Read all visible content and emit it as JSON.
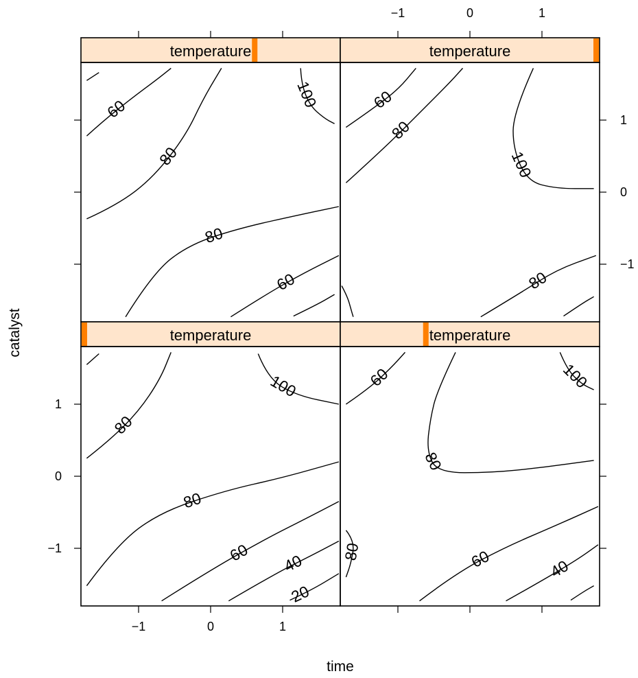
{
  "chart_data": {
    "type": "contour",
    "layout": "2x2 trellis panels",
    "xlabel": "time",
    "ylabel": "catalyst",
    "xlim": [
      -1.8,
      1.8
    ],
    "ylim": [
      -1.8,
      1.8
    ],
    "x_ticks": [
      "−1",
      "0",
      "1"
    ],
    "y_ticks": [
      "1",
      "0",
      "−1"
    ],
    "x_tick_values": [
      -1,
      0,
      1
    ],
    "y_tick_values": [
      1,
      0,
      -1
    ],
    "strip_color": "#ffe5cc",
    "strip_marker_color": "#ff7f00",
    "panels": [
      {
        "strip_label": "temperature",
        "temperature_marker_fraction": 0.67,
        "contours": [
          {
            "level": "",
            "points": [
              [
                -1.72,
                1.55
              ],
              [
                -1.55,
                1.66
              ]
            ]
          },
          {
            "level": "60",
            "points": [
              [
                -1.72,
                0.78
              ],
              [
                -1.5,
                0.98
              ],
              [
                -1.1,
                1.3
              ],
              [
                -0.75,
                1.56
              ],
              [
                -0.55,
                1.72
              ]
            ]
          },
          {
            "level": "80",
            "points": [
              [
                -1.72,
                -0.37
              ],
              [
                -1.3,
                -0.18
              ],
              [
                -0.8,
                0.2
              ],
              [
                -0.35,
                0.78
              ],
              [
                -0.1,
                1.3
              ],
              [
                0.15,
                1.72
              ]
            ]
          },
          {
            "level": "100",
            "points": [
              [
                1.25,
                1.72
              ],
              [
                1.26,
                1.5
              ],
              [
                1.38,
                1.2
              ],
              [
                1.57,
                1.03
              ],
              [
                1.72,
                0.95
              ]
            ]
          },
          {
            "level": "80",
            "points": [
              [
                -1.18,
                -1.73
              ],
              [
                -0.8,
                -1.12
              ],
              [
                -0.3,
                -0.73
              ],
              [
                0.4,
                -0.5
              ],
              [
                1.3,
                -0.3
              ],
              [
                1.78,
                -0.2
              ]
            ]
          },
          {
            "level": "60",
            "points": [
              [
                0.28,
                -1.73
              ],
              [
                0.8,
                -1.4
              ],
              [
                1.3,
                -1.12
              ],
              [
                1.78,
                -0.88
              ]
            ]
          },
          {
            "level": "",
            "points": [
              [
                1.15,
                -1.72
              ],
              [
                1.5,
                -1.55
              ],
              [
                1.72,
                -1.42
              ]
            ]
          }
        ]
      },
      {
        "strip_label": "temperature",
        "temperature_marker_fraction": 1.0,
        "contours": [
          {
            "level": "60",
            "points": [
              [
                -1.72,
                0.9
              ],
              [
                -1.4,
                1.12
              ],
              [
                -1.0,
                1.42
              ],
              [
                -0.75,
                1.72
              ]
            ]
          },
          {
            "level": "80",
            "points": [
              [
                -1.72,
                0.13
              ],
              [
                -1.2,
                0.6
              ],
              [
                -0.7,
                1.1
              ],
              [
                -0.3,
                1.5
              ],
              [
                -0.1,
                1.72
              ]
            ]
          },
          {
            "level": "100",
            "points": [
              [
                0.88,
                1.72
              ],
              [
                0.6,
                1.1
              ],
              [
                0.6,
                0.6
              ],
              [
                0.8,
                0.15
              ],
              [
                1.2,
                0.05
              ],
              [
                1.72,
                0.05
              ]
            ]
          },
          {
            "level": "80",
            "points": [
              [
                0.15,
                -1.73
              ],
              [
                0.7,
                -1.4
              ],
              [
                1.2,
                -1.08
              ],
              [
                1.75,
                -0.88
              ]
            ]
          },
          {
            "level": "",
            "points": [
              [
                1.3,
                -1.72
              ],
              [
                1.55,
                -1.55
              ],
              [
                1.72,
                -1.45
              ]
            ]
          },
          {
            "level": "",
            "points": [
              [
                -1.78,
                -1.3
              ],
              [
                -1.7,
                -1.45
              ],
              [
                -1.65,
                -1.63
              ],
              [
                -1.62,
                -1.73
              ]
            ]
          }
        ]
      },
      {
        "strip_label": "temperature",
        "temperature_marker_fraction": 0.0,
        "contours": [
          {
            "level": "",
            "points": [
              [
                -1.72,
                1.55
              ],
              [
                -1.55,
                1.7
              ]
            ]
          },
          {
            "level": "80",
            "points": [
              [
                -1.72,
                0.25
              ],
              [
                -1.4,
                0.5
              ],
              [
                -1.0,
                0.9
              ],
              [
                -0.7,
                1.35
              ],
              [
                -0.55,
                1.72
              ]
            ]
          },
          {
            "level": "100",
            "points": [
              [
                0.66,
                1.7
              ],
              [
                0.8,
                1.35
              ],
              [
                1.2,
                1.12
              ],
              [
                1.78,
                1.0
              ]
            ]
          },
          {
            "level": "80",
            "points": [
              [
                -1.72,
                -1.52
              ],
              [
                -1.3,
                -0.95
              ],
              [
                -0.7,
                -0.5
              ],
              [
                0.2,
                -0.2
              ],
              [
                1.0,
                -0.02
              ],
              [
                1.78,
                0.2
              ]
            ]
          },
          {
            "level": "60",
            "points": [
              [
                -0.68,
                -1.73
              ],
              [
                0.0,
                -1.3
              ],
              [
                0.8,
                -0.85
              ],
              [
                1.3,
                -0.6
              ],
              [
                1.78,
                -0.35
              ]
            ]
          },
          {
            "level": "40",
            "points": [
              [
                0.25,
                -1.73
              ],
              [
                0.9,
                -1.35
              ],
              [
                1.4,
                -1.1
              ],
              [
                1.78,
                -0.9
              ]
            ]
          },
          {
            "level": "20",
            "points": [
              [
                1.1,
                -1.72
              ],
              [
                1.4,
                -1.58
              ],
              [
                1.78,
                -1.35
              ]
            ]
          }
        ]
      },
      {
        "strip_label": "temperature",
        "temperature_marker_fraction": 0.33,
        "contours": [
          {
            "level": "60",
            "points": [
              [
                -1.72,
                1.0
              ],
              [
                -1.4,
                1.22
              ],
              [
                -1.1,
                1.5
              ],
              [
                -0.9,
                1.72
              ]
            ]
          },
          {
            "level": "80",
            "points": [
              [
                -0.2,
                1.72
              ],
              [
                -0.45,
                1.2
              ],
              [
                -0.55,
                0.8
              ],
              [
                -0.6,
                0.35
              ],
              [
                -0.45,
                0.05
              ],
              [
                0.3,
                0.05
              ],
              [
                1.0,
                0.12
              ],
              [
                1.72,
                0.22
              ]
            ]
          },
          {
            "level": "100",
            "points": [
              [
                1.25,
                1.72
              ],
              [
                1.35,
                1.48
              ],
              [
                1.55,
                1.28
              ],
              [
                1.72,
                1.2
              ]
            ]
          },
          {
            "level": "60",
            "points": [
              [
                -0.7,
                -1.73
              ],
              [
                -0.2,
                -1.35
              ],
              [
                0.5,
                -0.98
              ],
              [
                1.2,
                -0.68
              ],
              [
                1.78,
                -0.42
              ]
            ]
          },
          {
            "level": "40",
            "points": [
              [
                0.5,
                -1.73
              ],
              [
                1.0,
                -1.45
              ],
              [
                1.5,
                -1.15
              ],
              [
                1.78,
                -0.95
              ]
            ]
          },
          {
            "level": "",
            "points": [
              [
                1.4,
                -1.72
              ],
              [
                1.58,
                -1.6
              ],
              [
                1.72,
                -1.52
              ]
            ]
          },
          {
            "level": "80",
            "points": [
              [
                -1.72,
                -0.75
              ],
              [
                -1.6,
                -0.9
              ],
              [
                -1.65,
                -1.2
              ],
              [
                -1.72,
                -1.4
              ]
            ]
          }
        ]
      }
    ]
  }
}
